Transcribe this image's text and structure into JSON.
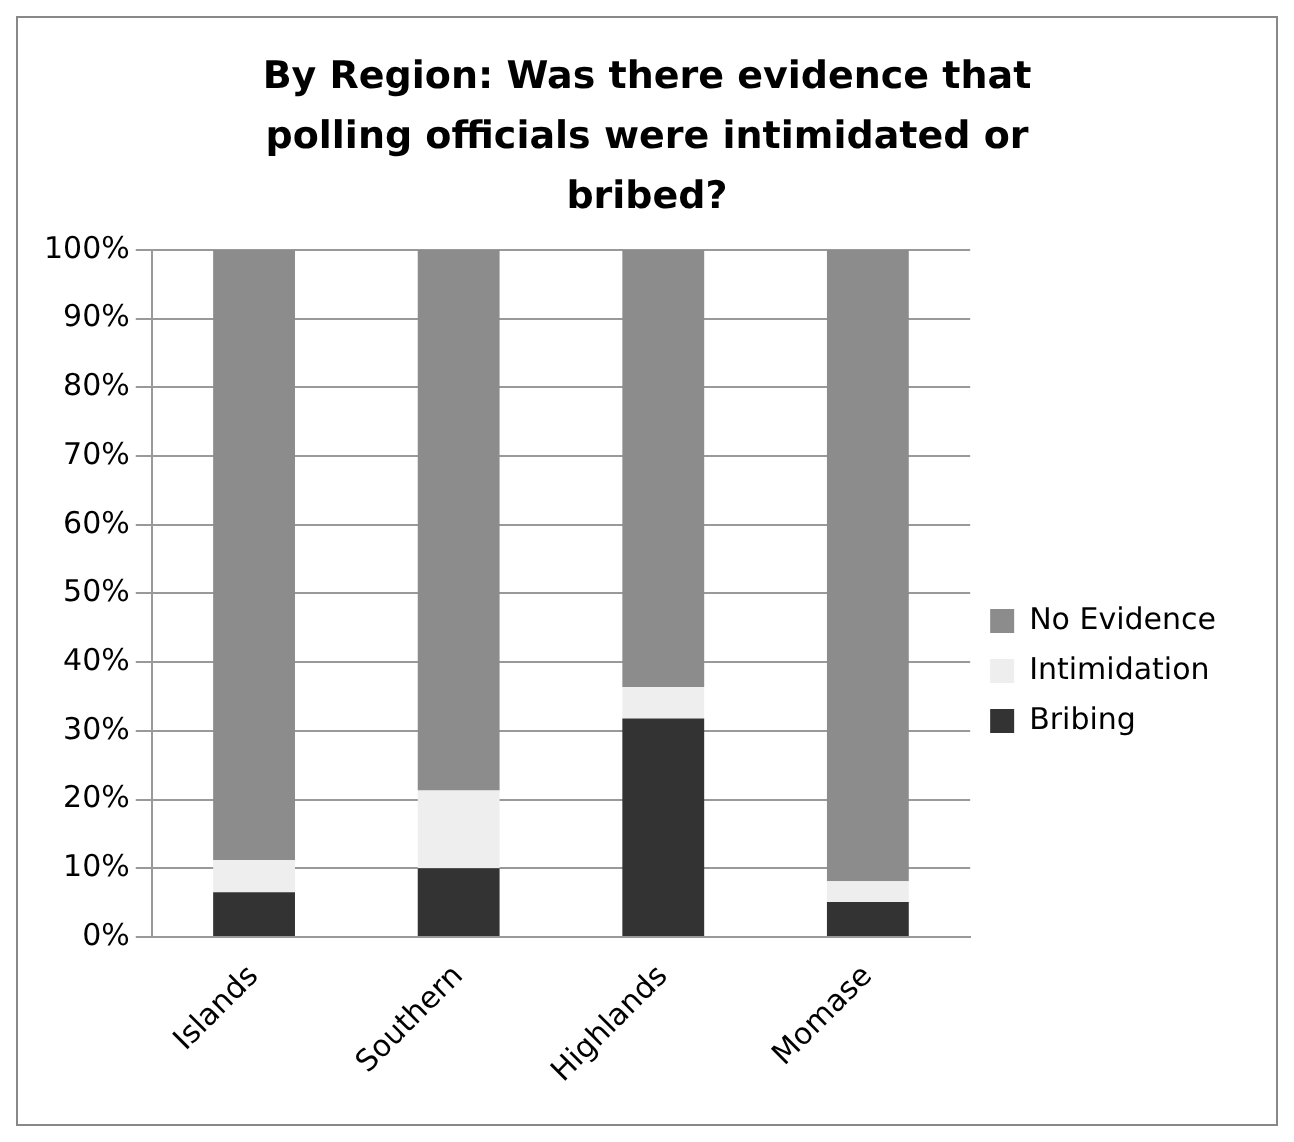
{
  "chart_data": {
    "type": "bar",
    "title": "By Region: Was there evidence that polling officials were intimidated or bribed?",
    "categories": [
      "Islands",
      "Southern",
      "Highlands",
      "Momase"
    ],
    "stacked": true,
    "series": [
      {
        "name": "Bribing",
        "color": "#333333",
        "values": [
          6.5,
          10,
          31.8,
          5.1
        ]
      },
      {
        "name": "Intimidation",
        "color": "#eeeeee",
        "values": [
          4.7,
          11.3,
          4.6,
          3
        ]
      },
      {
        "name": "No Evidence",
        "color": "#8c8c8c",
        "values": [
          88.8,
          78.7,
          63.6,
          91.9
        ]
      }
    ],
    "ylim": [
      0,
      100
    ],
    "yticks": [
      {
        "value": 0,
        "label": "0%"
      },
      {
        "value": 10,
        "label": "10%"
      },
      {
        "value": 20,
        "label": "20%"
      },
      {
        "value": 30,
        "label": "30%"
      },
      {
        "value": 40,
        "label": "40%"
      },
      {
        "value": 50,
        "label": "50%"
      },
      {
        "value": 60,
        "label": "60%"
      },
      {
        "value": 70,
        "label": "70%"
      },
      {
        "value": 80,
        "label": "80%"
      },
      {
        "value": 90,
        "label": "90%"
      },
      {
        "value": 100,
        "label": "100%"
      }
    ],
    "grid": "y",
    "legend": "right"
  }
}
